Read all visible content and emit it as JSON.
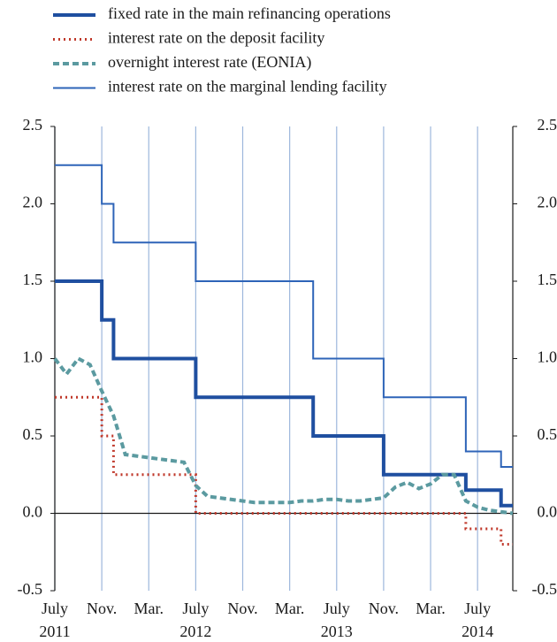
{
  "chart_data": {
    "type": "line",
    "x": [
      "2011-07",
      "2011-08",
      "2011-09",
      "2011-10",
      "2011-11",
      "2011-12",
      "2012-01",
      "2012-02",
      "2012-03",
      "2012-04",
      "2012-05",
      "2012-06",
      "2012-07",
      "2012-08",
      "2012-09",
      "2012-10",
      "2012-11",
      "2012-12",
      "2013-01",
      "2013-02",
      "2013-03",
      "2013-04",
      "2013-05",
      "2013-06",
      "2013-07",
      "2013-08",
      "2013-09",
      "2013-10",
      "2013-11",
      "2013-12",
      "2014-01",
      "2014-02",
      "2014-03",
      "2014-04",
      "2014-05",
      "2014-06",
      "2014-07",
      "2014-08",
      "2014-09",
      "2014-10"
    ],
    "series": [
      {
        "name": "fixed rate in the main refinancing operations",
        "color": "#1f4fa0",
        "style": "solid",
        "width": 4,
        "drawstyle": "steps-post",
        "values": [
          1.5,
          1.5,
          1.5,
          1.5,
          1.25,
          1.0,
          1.0,
          1.0,
          1.0,
          1.0,
          1.0,
          1.0,
          0.75,
          0.75,
          0.75,
          0.75,
          0.75,
          0.75,
          0.75,
          0.75,
          0.75,
          0.75,
          0.5,
          0.5,
          0.5,
          0.5,
          0.5,
          0.5,
          0.25,
          0.25,
          0.25,
          0.25,
          0.25,
          0.25,
          0.25,
          0.15,
          0.15,
          0.15,
          0.05,
          0.05
        ]
      },
      {
        "name": "interest rate on the deposit facility",
        "color": "#c0392b",
        "style": "dotted",
        "width": 3,
        "drawstyle": "steps-post",
        "values": [
          0.75,
          0.75,
          0.75,
          0.75,
          0.5,
          0.25,
          0.25,
          0.25,
          0.25,
          0.25,
          0.25,
          0.25,
          0,
          0,
          0,
          0,
          0,
          0,
          0,
          0,
          0,
          0,
          0,
          0,
          0,
          0,
          0,
          0,
          0,
          0,
          0,
          0,
          0,
          0,
          0,
          -0.1,
          -0.1,
          -0.1,
          -0.2,
          -0.2
        ]
      },
      {
        "name": "overnight interest rate (EONIA)",
        "color": "#5b9aa0",
        "style": "dashed",
        "width": 4,
        "drawstyle": "default",
        "values": [
          1.0,
          0.9,
          1.0,
          0.96,
          0.79,
          0.63,
          0.38,
          0.37,
          0.36,
          0.35,
          0.34,
          0.33,
          0.18,
          0.11,
          0.1,
          0.09,
          0.08,
          0.07,
          0.07,
          0.07,
          0.07,
          0.08,
          0.08,
          0.09,
          0.09,
          0.08,
          0.08,
          0.09,
          0.1,
          0.17,
          0.2,
          0.16,
          0.19,
          0.25,
          0.25,
          0.08,
          0.04,
          0.02,
          0.01,
          0.0
        ]
      },
      {
        "name": "interest rate on the marginal lending facility",
        "color": "#2e64b8",
        "style": "solid",
        "width": 2,
        "drawstyle": "steps-post",
        "values": [
          2.25,
          2.25,
          2.25,
          2.25,
          2.0,
          1.75,
          1.75,
          1.75,
          1.75,
          1.75,
          1.75,
          1.75,
          1.5,
          1.5,
          1.5,
          1.5,
          1.5,
          1.5,
          1.5,
          1.5,
          1.5,
          1.5,
          1.0,
          1.0,
          1.0,
          1.0,
          1.0,
          1.0,
          0.75,
          0.75,
          0.75,
          0.75,
          0.75,
          0.75,
          0.75,
          0.4,
          0.4,
          0.4,
          0.3,
          0.3
        ]
      }
    ],
    "xlim": [
      "2011-07",
      "2014-10"
    ],
    "xticks": [
      {
        "value": "2011-07",
        "label": "July"
      },
      {
        "value": "2011-11",
        "label": "Nov."
      },
      {
        "value": "2012-03",
        "label": "Mar."
      },
      {
        "value": "2012-07",
        "label": "July"
      },
      {
        "value": "2012-11",
        "label": "Nov."
      },
      {
        "value": "2013-03",
        "label": "Mar."
      },
      {
        "value": "2013-07",
        "label": "July"
      },
      {
        "value": "2013-11",
        "label": "Nov."
      },
      {
        "value": "2014-03",
        "label": "Mar."
      },
      {
        "value": "2014-07",
        "label": "July"
      }
    ],
    "xtick_years": [
      {
        "value": "2011-07",
        "label": "2011"
      },
      {
        "value": "2012-07",
        "label": "2012"
      },
      {
        "value": "2013-07",
        "label": "2013"
      },
      {
        "value": "2014-07",
        "label": "2014"
      }
    ],
    "ylim": [
      -0.5,
      2.5
    ],
    "yticks": [
      {
        "value": 2.5,
        "label": "2.5"
      },
      {
        "value": 2,
        "label": "2.0"
      },
      {
        "value": 1.5,
        "label": "1.5"
      },
      {
        "value": 1,
        "label": "1.0"
      },
      {
        "value": 0.5,
        "label": "0.5"
      },
      {
        "value": 0,
        "label": "0.0"
      },
      {
        "value": -0.5,
        "label": "-0.5"
      }
    ],
    "y2lim": [
      -0.5,
      2.5
    ],
    "y2ticks": [
      {
        "value": 2.5,
        "label": "2.5"
      },
      {
        "value": 2,
        "label": "2.0"
      },
      {
        "value": 1.5,
        "label": "1.5"
      },
      {
        "value": 1,
        "label": "1.0"
      },
      {
        "value": 0.5,
        "label": "0.5"
      },
      {
        "value": 0,
        "label": "0.0"
      },
      {
        "value": -0.5,
        "label": "-0.5"
      }
    ],
    "grid": true,
    "grid_color": "#9db7dc"
  }
}
